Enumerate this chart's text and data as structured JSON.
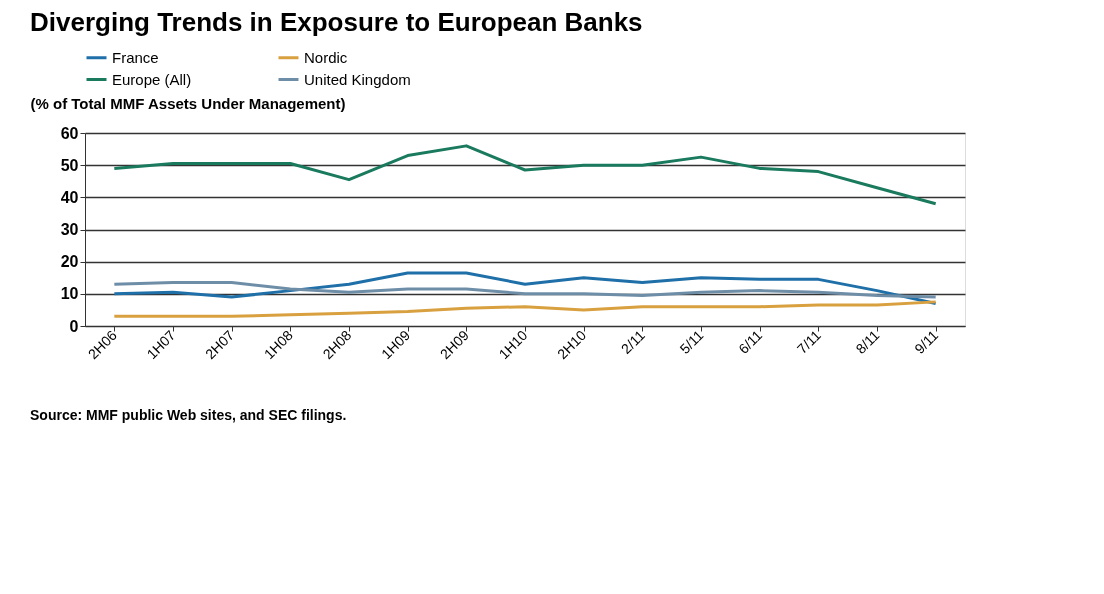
{
  "chart_data": {
    "type": "line",
    "title": "Diverging Trends in Exposure to European Banks",
    "ylabel": "(% of Total MMF Assets Under Management)",
    "categories": [
      "2H06",
      "1H07",
      "2H07",
      "1H08",
      "2H08",
      "1H09",
      "2H09",
      "1H10",
      "2H10",
      "2/11",
      "5/11",
      "6/11",
      "7/11",
      "8/11",
      "9/11"
    ],
    "series": [
      {
        "name": "France",
        "color": "#1f6fa8",
        "values": [
          10,
          10.5,
          9,
          11,
          13,
          16.5,
          16.5,
          13,
          15,
          13.5,
          15,
          14.5,
          14.5,
          11,
          7
        ]
      },
      {
        "name": "Nordic",
        "color": "#d9a040",
        "values": [
          3,
          3,
          3,
          3.5,
          4,
          4.5,
          5.5,
          6,
          5,
          6,
          6,
          6,
          6.5,
          6.5,
          7.5
        ]
      },
      {
        "name": "Europe (All)",
        "color": "#1a7a5e",
        "values": [
          49,
          50.5,
          50.5,
          50.5,
          45.5,
          53,
          56,
          48.5,
          50,
          50,
          52.5,
          49,
          48,
          43,
          38
        ]
      },
      {
        "name": "United Kingdom",
        "color": "#6e8ea8",
        "values": [
          13,
          13.5,
          13.5,
          11.5,
          10.5,
          11.5,
          11.5,
          10,
          10,
          9.5,
          10.5,
          11,
          10.5,
          9.5,
          9
        ]
      }
    ],
    "ylim": [
      0,
      60
    ],
    "yticks": [
      0,
      10,
      20,
      30,
      40,
      50,
      60
    ],
    "grid": "y",
    "legend": "top",
    "marker": "none",
    "line_style": "solid",
    "annotations": [
      "Source: MMF public Web sites, and SEC filings."
    ]
  }
}
